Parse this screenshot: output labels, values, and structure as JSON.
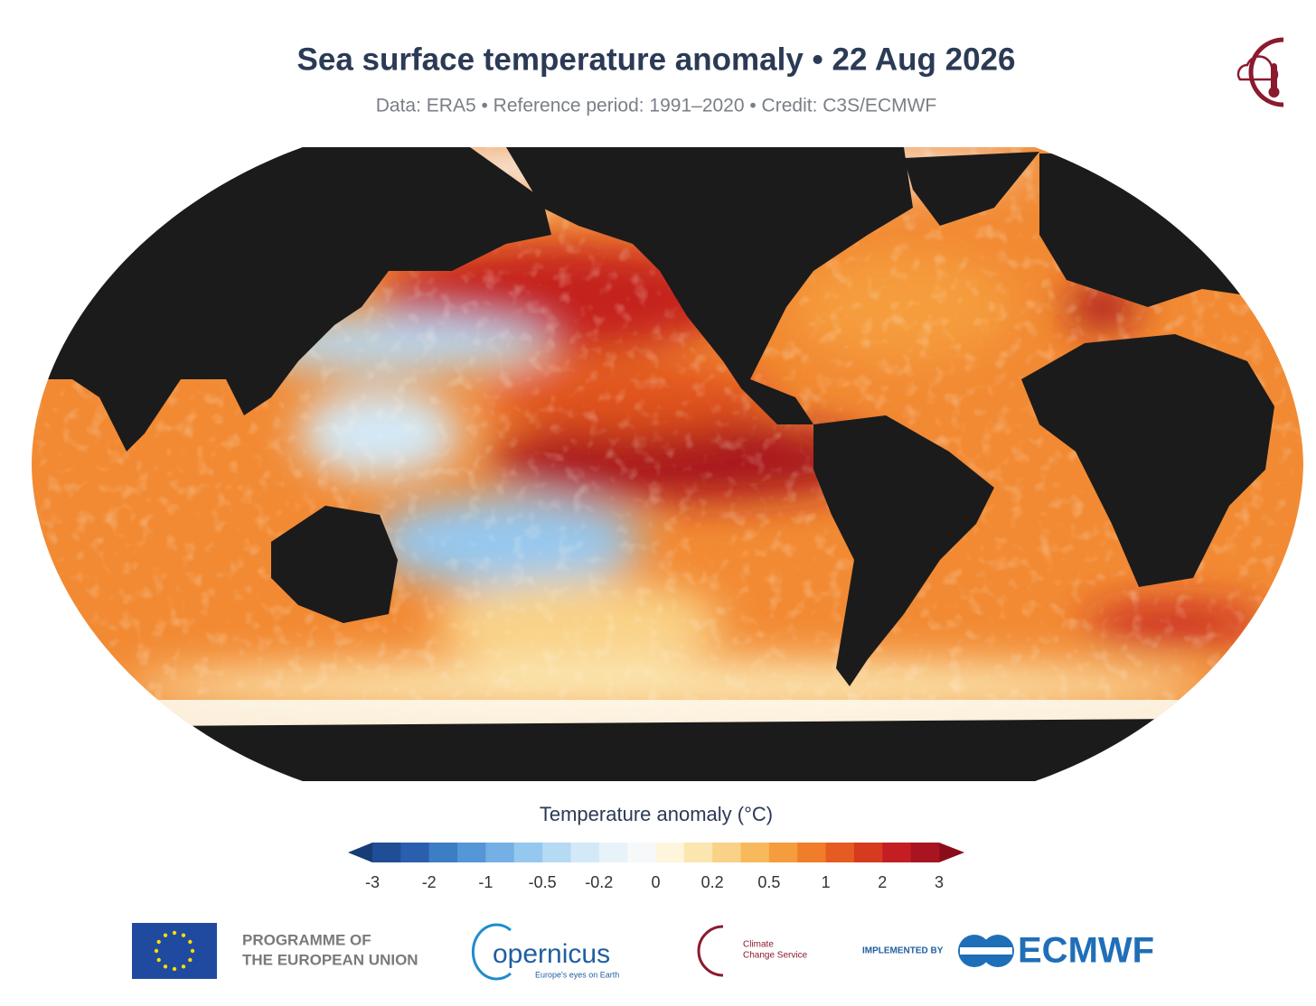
{
  "header": {
    "title": "Sea surface temperature anomaly • 22 Aug 2026",
    "subtitle": "Data: ERA5 • Reference period: 1991–2020 • Credit: C3S/ECMWF"
  },
  "colorbar": {
    "title": "Temperature anomaly (°C)",
    "ticks": [
      "-3",
      "-2",
      "-1",
      "-0.5",
      "-0.2",
      "0",
      "0.2",
      "0.5",
      "1",
      "2",
      "3"
    ],
    "under_color": "#163d75",
    "over_color": "#8a0c18",
    "colors": [
      "#1f4e96",
      "#2b5fae",
      "#3d7dc4",
      "#5596d6",
      "#74b0e5",
      "#95c8ef",
      "#b5daf4",
      "#d3e9f7",
      "#e8f3f9",
      "#f7f8f9",
      "#fdf5dc",
      "#fbe6b0",
      "#f9d287",
      "#f8b95c",
      "#f59c3c",
      "#ef7d2a",
      "#e65b22",
      "#d63a1f",
      "#c41e23",
      "#a8141f"
    ]
  },
  "footer": {
    "eu_line1": "PROGRAMME OF",
    "eu_line2": "THE EUROPEAN UNION",
    "copernicus": "opernicus",
    "copernicus_tagline": "Europe's eyes on Earth",
    "c3s_line1": "Climate",
    "c3s_line2": "Change Service",
    "implemented_by": "IMPLEMENTED BY",
    "ecmwf": "ECMWF"
  }
}
